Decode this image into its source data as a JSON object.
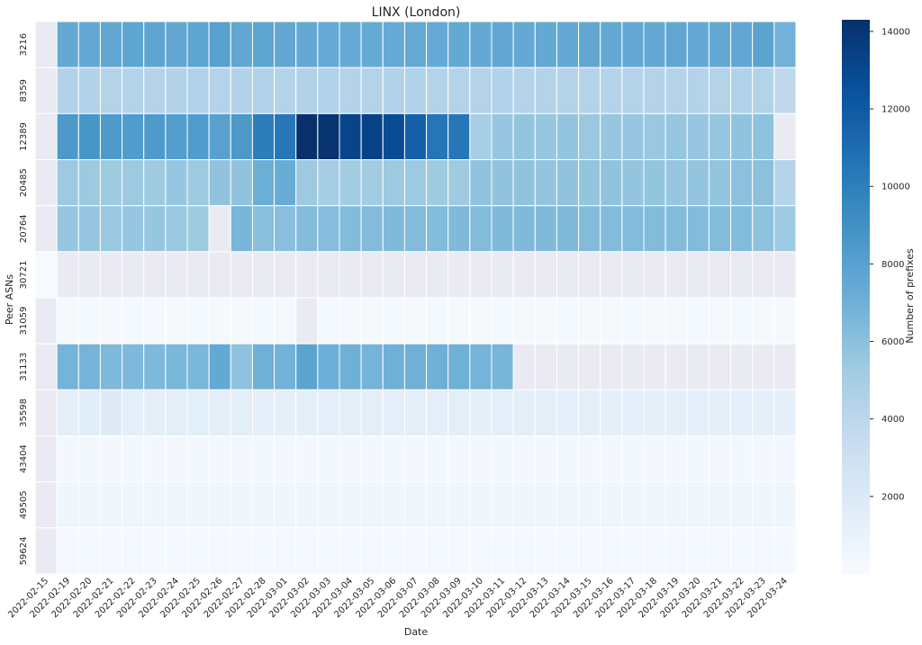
{
  "chart_data": {
    "type": "heatmap",
    "title": "LINX (London)",
    "xlabel": "Date",
    "ylabel": "Peer ASNs",
    "colorbar_label": "Number of prefixes",
    "colorbar_range": [
      0,
      14300
    ],
    "colorbar_ticks": [
      "2000",
      "4000",
      "6000",
      "8000",
      "10000",
      "12000",
      "14000"
    ],
    "colormap": "Blues",
    "missing_color": "#eaeaf2",
    "grid": false,
    "x": [
      "2022-02-15",
      "2022-02-19",
      "2022-02-20",
      "2022-02-21",
      "2022-02-22",
      "2022-02-23",
      "2022-02-24",
      "2022-02-25",
      "2022-02-26",
      "2022-02-27",
      "2022-02-28",
      "2022-03-01",
      "2022-03-02",
      "2022-03-03",
      "2022-03-04",
      "2022-03-05",
      "2022-03-06",
      "2022-03-07",
      "2022-03-08",
      "2022-03-09",
      "2022-03-10",
      "2022-03-11",
      "2022-03-12",
      "2022-03-13",
      "2022-03-14",
      "2022-03-15",
      "2022-03-16",
      "2022-03-17",
      "2022-03-18",
      "2022-03-19",
      "2022-03-20",
      "2022-03-21",
      "2022-03-22",
      "2022-03-23",
      "2022-03-24"
    ],
    "y": [
      "3216",
      "8359",
      "12389",
      "20485",
      "20764",
      "30721",
      "31059",
      "31133",
      "35598",
      "43404",
      "49505",
      "59624"
    ],
    "z": [
      [
        null,
        7500,
        7500,
        7600,
        7700,
        7700,
        7600,
        7700,
        8000,
        7600,
        7700,
        7600,
        7500,
        7400,
        7400,
        7400,
        7400,
        7400,
        7400,
        7500,
        7500,
        7600,
        7500,
        7500,
        7500,
        7600,
        7500,
        7500,
        7500,
        7600,
        7500,
        7500,
        7600,
        7800,
        6900
      ],
      [
        null,
        4500,
        4500,
        4400,
        4400,
        4400,
        4500,
        4500,
        4400,
        4500,
        4500,
        4400,
        4500,
        4500,
        4400,
        4400,
        4500,
        4500,
        4400,
        4400,
        4400,
        4500,
        4400,
        4400,
        4400,
        4400,
        4400,
        4400,
        4400,
        4400,
        4400,
        4400,
        4500,
        4400,
        3900
      ],
      [
        null,
        8500,
        8700,
        8400,
        8300,
        8400,
        8200,
        8300,
        8000,
        8500,
        10100,
        10400,
        14300,
        14100,
        13200,
        13300,
        12800,
        11600,
        10500,
        10400,
        4900,
        5600,
        5700,
        5600,
        5700,
        5500,
        5600,
        5600,
        5500,
        5600,
        5600,
        5600,
        5800,
        5900,
        null
      ],
      [
        null,
        5400,
        5400,
        5300,
        5400,
        5300,
        5600,
        5400,
        5800,
        5800,
        7100,
        7300,
        5400,
        5000,
        5200,
        5200,
        5400,
        5400,
        5300,
        5300,
        5800,
        5800,
        5800,
        5700,
        5800,
        5700,
        5800,
        5700,
        5700,
        5600,
        5700,
        5700,
        6000,
        6000,
        4300
      ],
      [
        null,
        5600,
        5600,
        5500,
        5600,
        5600,
        5500,
        5300,
        null,
        6700,
        6100,
        6100,
        6300,
        6200,
        6300,
        6300,
        6400,
        6300,
        6300,
        6400,
        6300,
        6400,
        6400,
        6400,
        6400,
        6300,
        6300,
        6300,
        6300,
        6300,
        6300,
        6300,
        6300,
        5900,
        5400
      ],
      [
        130,
        null,
        null,
        null,
        null,
        null,
        null,
        null,
        null,
        null,
        null,
        null,
        null,
        null,
        null,
        null,
        null,
        null,
        null,
        null,
        null,
        null,
        null,
        null,
        null,
        null,
        null,
        null,
        null,
        null,
        null,
        null,
        null,
        null,
        null
      ],
      [
        null,
        190,
        190,
        190,
        190,
        190,
        190,
        190,
        190,
        190,
        190,
        190,
        null,
        190,
        190,
        190,
        190,
        190,
        190,
        190,
        190,
        190,
        190,
        190,
        190,
        190,
        190,
        190,
        190,
        190,
        190,
        190,
        190,
        190,
        190
      ],
      [
        null,
        6800,
        6800,
        6500,
        6500,
        6500,
        6600,
        6600,
        7500,
        5900,
        7000,
        6900,
        7800,
        7100,
        7000,
        6800,
        7000,
        7000,
        7000,
        7000,
        6800,
        6700,
        null,
        null,
        null,
        null,
        null,
        null,
        null,
        null,
        null,
        null,
        null,
        null,
        null
      ],
      [
        null,
        1400,
        1600,
        1800,
        1400,
        1400,
        1500,
        1500,
        1400,
        1500,
        1300,
        1300,
        1400,
        1400,
        1400,
        1400,
        1400,
        1400,
        1400,
        1400,
        1300,
        1400,
        1400,
        1400,
        1300,
        1400,
        1300,
        1300,
        1300,
        1300,
        1300,
        1300,
        1300,
        1300,
        1300
      ],
      [
        null,
        280,
        280,
        280,
        280,
        280,
        280,
        280,
        280,
        280,
        280,
        280,
        280,
        280,
        280,
        280,
        280,
        280,
        280,
        280,
        280,
        280,
        280,
        280,
        280,
        280,
        280,
        280,
        280,
        280,
        280,
        280,
        280,
        280,
        280
      ],
      [
        null,
        600,
        600,
        600,
        600,
        600,
        600,
        600,
        600,
        600,
        600,
        600,
        600,
        600,
        600,
        600,
        600,
        600,
        600,
        600,
        600,
        600,
        600,
        600,
        600,
        600,
        600,
        600,
        600,
        600,
        600,
        600,
        600,
        600,
        600
      ],
      [
        null,
        260,
        260,
        260,
        260,
        260,
        260,
        260,
        260,
        260,
        260,
        260,
        260,
        260,
        260,
        260,
        260,
        260,
        260,
        260,
        260,
        260,
        260,
        260,
        260,
        260,
        260,
        260,
        260,
        260,
        260,
        260,
        260,
        260,
        260
      ]
    ]
  }
}
